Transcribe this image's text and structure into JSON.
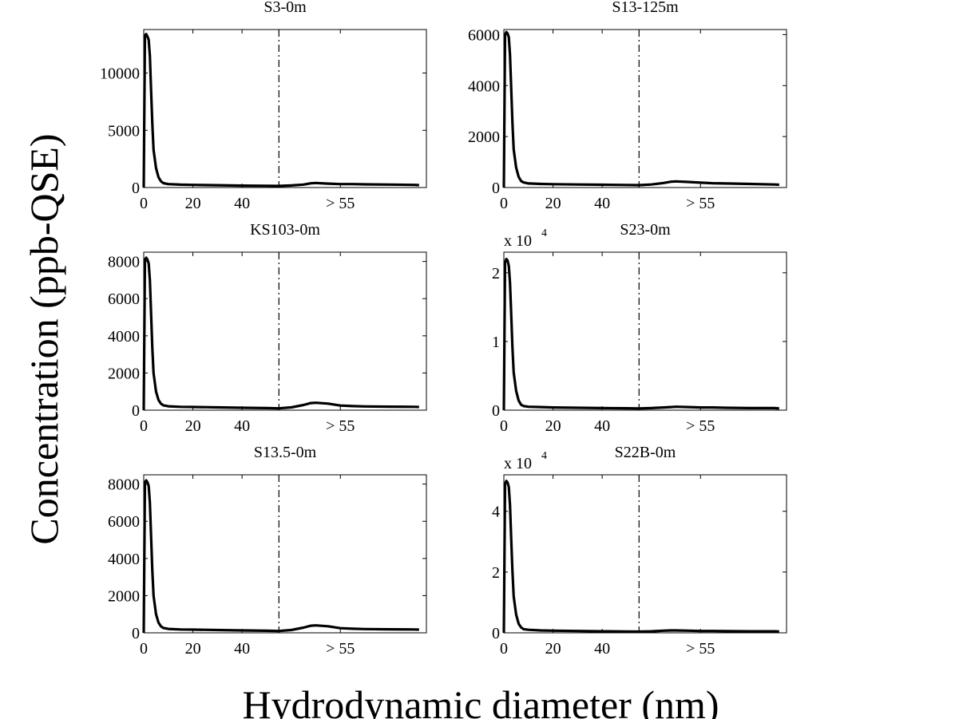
{
  "figure": {
    "ylabel": "Concentration (ppb-QSE)",
    "xlabel": "Hydrodynamic diameter (nm)",
    "colors": {
      "line": "#000000",
      "background": "#ffffff"
    }
  },
  "chart_data": [
    {
      "type": "line",
      "title": "S3-0m",
      "multiplier_label": "",
      "xlim": [
        0,
        115
      ],
      "ylim": [
        0,
        13800
      ],
      "xticks": [
        {
          "v": 0,
          "label": "0"
        },
        {
          "v": 20,
          "label": "20"
        },
        {
          "v": 40,
          "label": "40"
        },
        {
          "v": 80,
          "label": "> 55"
        }
      ],
      "yticks": [
        {
          "v": 0,
          "label": "0"
        },
        {
          "v": 5000,
          "label": "5000"
        },
        {
          "v": 10000,
          "label": "10000"
        }
      ],
      "cutoff_x": 55,
      "series": [
        {
          "x": [
            0,
            0.5,
            1,
            1.5,
            2,
            2.5,
            3,
            3.5,
            4,
            5,
            6,
            7,
            8,
            10,
            15,
            20,
            30,
            40,
            50,
            55,
            60,
            65,
            68,
            70,
            75,
            80,
            85,
            90,
            100,
            110,
            112
          ],
          "y": [
            0,
            13300,
            13400,
            13200,
            12900,
            11500,
            8500,
            5500,
            3300,
            1700,
            900,
            550,
            380,
            300,
            250,
            230,
            200,
            170,
            150,
            140,
            180,
            260,
            370,
            400,
            340,
            300,
            300,
            280,
            260,
            230,
            210
          ]
        }
      ]
    },
    {
      "type": "line",
      "title": "S13-125m",
      "multiplier_label": "",
      "xlim": [
        0,
        115
      ],
      "ylim": [
        0,
        6200
      ],
      "xticks": [
        {
          "v": 0,
          "label": "0"
        },
        {
          "v": 20,
          "label": "20"
        },
        {
          "v": 40,
          "label": "40"
        },
        {
          "v": 80,
          "label": "> 55"
        }
      ],
      "yticks": [
        {
          "v": 0,
          "label": "0"
        },
        {
          "v": 2000,
          "label": "2000"
        },
        {
          "v": 4000,
          "label": "4000"
        },
        {
          "v": 6000,
          "label": "6000"
        }
      ],
      "cutoff_x": 55,
      "series": [
        {
          "x": [
            0,
            0.5,
            1,
            1.5,
            2,
            2.5,
            3,
            3.5,
            4,
            5,
            6,
            7,
            8,
            10,
            15,
            20,
            30,
            40,
            50,
            55,
            60,
            65,
            68,
            70,
            75,
            80,
            85,
            90,
            100,
            110,
            112
          ],
          "y": [
            0,
            6000,
            6100,
            6050,
            5900,
            5200,
            3900,
            2500,
            1500,
            780,
            420,
            260,
            200,
            160,
            140,
            130,
            120,
            110,
            100,
            95,
            120,
            180,
            230,
            240,
            220,
            190,
            170,
            160,
            140,
            120,
            110
          ]
        }
      ]
    },
    {
      "type": "line",
      "title": "KS103-0m",
      "multiplier_label": "",
      "xlim": [
        0,
        115
      ],
      "ylim": [
        0,
        8500
      ],
      "xticks": [
        {
          "v": 0,
          "label": "0"
        },
        {
          "v": 20,
          "label": "20"
        },
        {
          "v": 40,
          "label": "40"
        },
        {
          "v": 80,
          "label": "> 55"
        }
      ],
      "yticks": [
        {
          "v": 0,
          "label": "0"
        },
        {
          "v": 2000,
          "label": "2000"
        },
        {
          "v": 4000,
          "label": "4000"
        },
        {
          "v": 6000,
          "label": "6000"
        },
        {
          "v": 8000,
          "label": "8000"
        }
      ],
      "cutoff_x": 55,
      "series": [
        {
          "x": [
            0,
            0.5,
            1,
            1.5,
            2,
            2.5,
            3,
            3.5,
            4,
            5,
            6,
            7,
            8,
            10,
            15,
            20,
            30,
            40,
            50,
            55,
            60,
            65,
            68,
            70,
            75,
            80,
            85,
            90,
            100,
            110,
            112
          ],
          "y": [
            0,
            8100,
            8200,
            8100,
            7900,
            7000,
            5200,
            3300,
            2000,
            1000,
            550,
            350,
            260,
            210,
            180,
            170,
            150,
            130,
            110,
            100,
            150,
            280,
            380,
            400,
            350,
            250,
            220,
            200,
            190,
            180,
            170
          ]
        }
      ]
    },
    {
      "type": "line",
      "title": "S23-0m",
      "multiplier_label": "x 10",
      "multiplier_exp": "4",
      "xlim": [
        0,
        115
      ],
      "ylim": [
        0,
        2.3
      ],
      "xticks": [
        {
          "v": 0,
          "label": "0"
        },
        {
          "v": 20,
          "label": "20"
        },
        {
          "v": 40,
          "label": "40"
        },
        {
          "v": 80,
          "label": "> 55"
        }
      ],
      "yticks": [
        {
          "v": 0,
          "label": "0"
        },
        {
          "v": 1,
          "label": "1"
        },
        {
          "v": 2,
          "label": "2"
        }
      ],
      "cutoff_x": 55,
      "series": [
        {
          "x": [
            0,
            0.5,
            1,
            1.5,
            2,
            2.5,
            3,
            3.5,
            4,
            5,
            6,
            7,
            8,
            10,
            15,
            20,
            30,
            40,
            50,
            55,
            60,
            65,
            68,
            70,
            75,
            80,
            85,
            90,
            100,
            110,
            112
          ],
          "y": [
            0,
            2.15,
            2.2,
            2.18,
            2.1,
            1.85,
            1.4,
            0.9,
            0.55,
            0.28,
            0.14,
            0.08,
            0.06,
            0.05,
            0.045,
            0.04,
            0.035,
            0.03,
            0.028,
            0.025,
            0.03,
            0.04,
            0.045,
            0.05,
            0.045,
            0.04,
            0.04,
            0.035,
            0.03,
            0.03,
            0.025
          ]
        }
      ]
    },
    {
      "type": "line",
      "title": "S13.5-0m",
      "multiplier_label": "",
      "xlim": [
        0,
        115
      ],
      "ylim": [
        0,
        8500
      ],
      "xticks": [
        {
          "v": 0,
          "label": "0"
        },
        {
          "v": 20,
          "label": "20"
        },
        {
          "v": 40,
          "label": "40"
        },
        {
          "v": 80,
          "label": "> 55"
        }
      ],
      "yticks": [
        {
          "v": 0,
          "label": "0"
        },
        {
          "v": 2000,
          "label": "2000"
        },
        {
          "v": 4000,
          "label": "4000"
        },
        {
          "v": 6000,
          "label": "6000"
        },
        {
          "v": 8000,
          "label": "8000"
        }
      ],
      "cutoff_x": 55,
      "series": [
        {
          "x": [
            0,
            0.5,
            1,
            1.5,
            2,
            2.5,
            3,
            3.5,
            4,
            5,
            6,
            7,
            8,
            10,
            15,
            20,
            30,
            40,
            50,
            55,
            60,
            65,
            68,
            70,
            75,
            80,
            85,
            90,
            100,
            110,
            112
          ],
          "y": [
            0,
            8100,
            8200,
            8100,
            7900,
            7000,
            5200,
            3300,
            2000,
            1000,
            550,
            350,
            260,
            210,
            180,
            170,
            150,
            130,
            110,
            100,
            150,
            280,
            380,
            400,
            350,
            250,
            220,
            200,
            190,
            180,
            170
          ]
        }
      ]
    },
    {
      "type": "line",
      "title": "S22B-0m",
      "multiplier_label": "x 10",
      "multiplier_exp": "4",
      "xlim": [
        0,
        115
      ],
      "ylim": [
        0,
        5.2
      ],
      "xticks": [
        {
          "v": 0,
          "label": "0"
        },
        {
          "v": 20,
          "label": "20"
        },
        {
          "v": 40,
          "label": "40"
        },
        {
          "v": 80,
          "label": "> 55"
        }
      ],
      "yticks": [
        {
          "v": 0,
          "label": "0"
        },
        {
          "v": 2,
          "label": "2"
        },
        {
          "v": 4,
          "label": "4"
        }
      ],
      "cutoff_x": 55,
      "series": [
        {
          "x": [
            0,
            0.5,
            1,
            1.5,
            2,
            2.5,
            3,
            3.5,
            4,
            5,
            6,
            7,
            8,
            10,
            15,
            20,
            30,
            40,
            50,
            55,
            60,
            65,
            68,
            70,
            75,
            80,
            85,
            90,
            100,
            110,
            112
          ],
          "y": [
            0,
            4.9,
            5.0,
            4.95,
            4.8,
            4.2,
            3.1,
            2.0,
            1.2,
            0.6,
            0.3,
            0.18,
            0.12,
            0.1,
            0.08,
            0.07,
            0.06,
            0.05,
            0.045,
            0.04,
            0.05,
            0.07,
            0.08,
            0.08,
            0.07,
            0.06,
            0.06,
            0.055,
            0.05,
            0.05,
            0.045
          ]
        }
      ]
    }
  ]
}
